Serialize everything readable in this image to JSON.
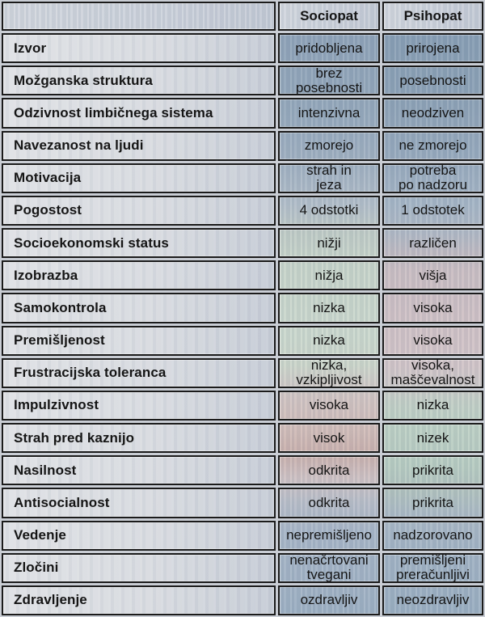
{
  "table": {
    "columns": [
      "",
      "Sociopat",
      "Psihopat"
    ],
    "rows": [
      {
        "label": "Izvor",
        "sociopat": "pridobljena",
        "psihopat": "prirojena"
      },
      {
        "label": "Možganska struktura",
        "sociopat": "brez\nposebnosti",
        "psihopat": "posebnosti"
      },
      {
        "label": "Odzivnost limbičnega sistema",
        "sociopat": "intenzivna",
        "psihopat": "neodziven"
      },
      {
        "label": "Navezanost na ljudi",
        "sociopat": "zmorejo",
        "psihopat": "ne zmorejo"
      },
      {
        "label": "Motivacija",
        "sociopat": "strah in\njeza",
        "psihopat": "potreba\npo nadzoru"
      },
      {
        "label": "Pogostost",
        "sociopat": "4 odstotki",
        "psihopat": "1 odstotek"
      },
      {
        "label": "Socioekonomski status",
        "sociopat": "nižji",
        "psihopat": "različen"
      },
      {
        "label": "Izobrazba",
        "sociopat": "nižja",
        "psihopat": "višja"
      },
      {
        "label": "Samokontrola",
        "sociopat": "nizka",
        "psihopat": "visoka"
      },
      {
        "label": "Premišljenost",
        "sociopat": "nizka",
        "psihopat": "visoka"
      },
      {
        "label": "Frustracijska toleranca",
        "sociopat": "nizka,\nvzkipljivost",
        "psihopat": "visoka,\nmaščevalnost"
      },
      {
        "label": "Impulzivnost",
        "sociopat": "visoka",
        "psihopat": "nizka"
      },
      {
        "label": "Strah pred kaznijo",
        "sociopat": "visok",
        "psihopat": "nizek"
      },
      {
        "label": "Nasilnost",
        "sociopat": "odkrita",
        "psihopat": "prikrita"
      },
      {
        "label": "Antisocialnost",
        "sociopat": "odkrita",
        "psihopat": "prikrita"
      },
      {
        "label": "Vedenje",
        "sociopat": "nepremišljeno",
        "psihopat": "nadzorovano"
      },
      {
        "label": "Zločini",
        "sociopat": "nenačrtovani\ntvegani",
        "psihopat": "premišljeni\npreračunljivi"
      },
      {
        "label": "Zdravljenje",
        "sociopat": "ozdravljiv",
        "psihopat": "neozdravljiv"
      }
    ]
  },
  "palette": {
    "border": "#1b1b1b",
    "background_gap": "#c9cdd4",
    "label_cell": "#d8dbe0",
    "header_cell": "#ccd2db",
    "steel_blue": "#8fa3b8",
    "sage_green": "#c7d4c9",
    "mauve_pink": "#d1c2c6",
    "red_pink": "#c9aba6",
    "text": "#151515"
  },
  "chart_data": {
    "type": "table",
    "title": "Sociopat vs Psihopat comparison table",
    "columns": [
      "",
      "Sociopat",
      "Psihopat"
    ],
    "rows": [
      [
        "Izvor",
        "pridobljena",
        "prirojena"
      ],
      [
        "Možganska struktura",
        "brez posebnosti",
        "posebnosti"
      ],
      [
        "Odzivnost limbičnega sistema",
        "intenzivna",
        "neodziven"
      ],
      [
        "Navezanost na ljudi",
        "zmorejo",
        "ne zmorejo"
      ],
      [
        "Motivacija",
        "strah in jeza",
        "potreba po nadzoru"
      ],
      [
        "Pogostost",
        "4 odstotki",
        "1 odstotek"
      ],
      [
        "Socioekonomski status",
        "nižji",
        "različen"
      ],
      [
        "Izobrazba",
        "nižja",
        "višja"
      ],
      [
        "Samokontrola",
        "nizka",
        "visoka"
      ],
      [
        "Premišljenost",
        "nizka",
        "visoka"
      ],
      [
        "Frustracijska toleranca",
        "nizka, vzkipljivost",
        "visoka, maščevalnost"
      ],
      [
        "Impulzivnost",
        "visoka",
        "nizka"
      ],
      [
        "Strah pred kaznijo",
        "visok",
        "nizek"
      ],
      [
        "Nasilnost",
        "odkrita",
        "prikrita"
      ],
      [
        "Antisocialnost",
        "odkrita",
        "prikrita"
      ],
      [
        "Vedenje",
        "nepremišljeno",
        "nadzorovano"
      ],
      [
        "Zločini",
        "nenačrtovani tvegani",
        "premišljeni preračunljivi"
      ],
      [
        "Zdravljenje",
        "ozdravljiv",
        "neozdravljiv"
      ]
    ]
  }
}
